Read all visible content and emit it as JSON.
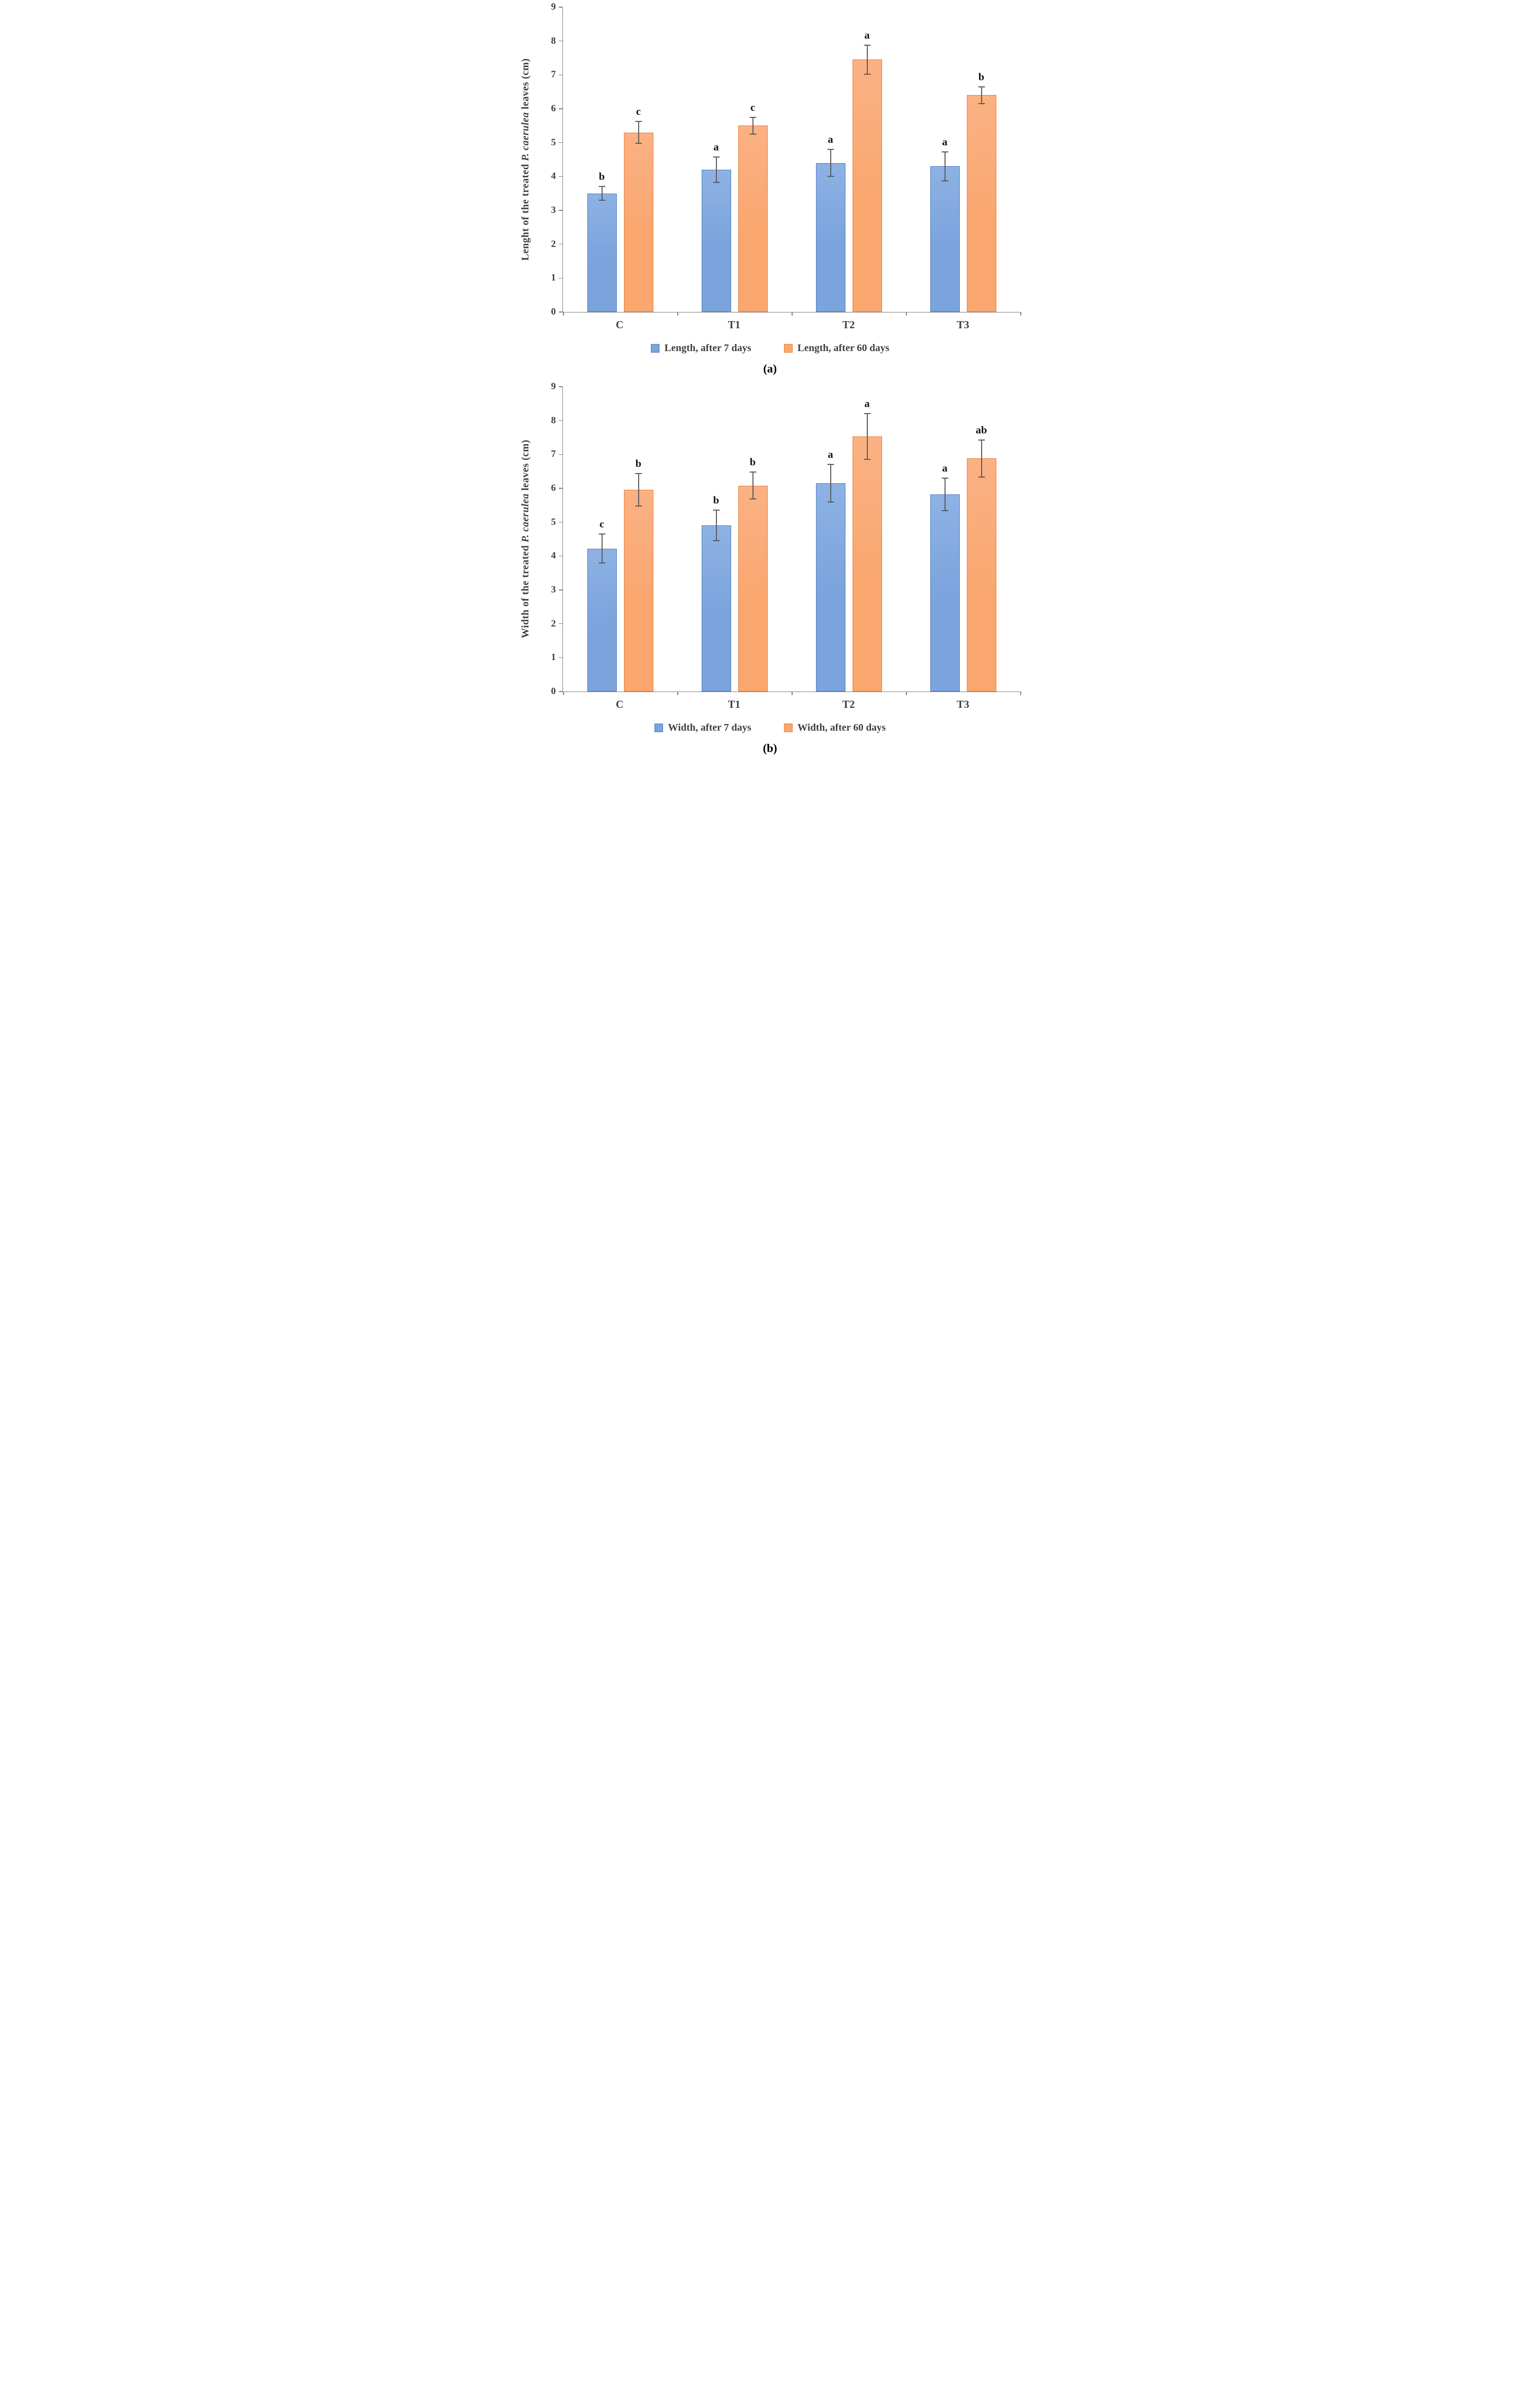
{
  "colors": {
    "series1_fill": "#7ba3dc",
    "series1_border": "#4d7ebf",
    "series2_fill": "#faa76f",
    "series2_border": "#e97d33",
    "axis": "#7f7f7f",
    "error_bar": "#595959",
    "label_text": "#3f3f3f"
  },
  "chart_data": [
    {
      "id": "a",
      "type": "bar",
      "caption": "(a)",
      "title": "",
      "xlabel": "",
      "ylabel": "Lenght of the treated P. caerulea leaves (cm)",
      "ylabel_parts": [
        {
          "text": "Lenght of the treated ",
          "italic": false
        },
        {
          "text": "P. caerulea",
          "italic": true
        },
        {
          "text": " leaves (cm)",
          "italic": false
        }
      ],
      "categories": [
        "C",
        "T1",
        "T2",
        "T3"
      ],
      "series": [
        {
          "name": "Length, after 7 days",
          "values": [
            3.5,
            4.2,
            4.4,
            4.3
          ],
          "errors": [
            0.2,
            0.38,
            0.4,
            0.43
          ],
          "letters": [
            "b",
            "a",
            "a",
            "a"
          ],
          "color": "#7ba3dc"
        },
        {
          "name": "Length, after 60 days",
          "values": [
            5.3,
            5.5,
            7.45,
            6.4
          ],
          "errors": [
            0.32,
            0.25,
            0.43,
            0.25
          ],
          "letters": [
            "c",
            "c",
            "a",
            "b"
          ],
          "color": "#faa76f"
        }
      ],
      "ylim": [
        0,
        9
      ],
      "ytick_step": 1,
      "grid": false,
      "legend_position": "bottom"
    },
    {
      "id": "b",
      "type": "bar",
      "caption": "(b)",
      "title": "",
      "xlabel": "",
      "ylabel": "Width of the treated P. caerulea leaves (cm)",
      "ylabel_parts": [
        {
          "text": "Width of the treated ",
          "italic": false
        },
        {
          "text": "P. caerulea",
          "italic": true
        },
        {
          "text": " leaves (cm)",
          "italic": false
        }
      ],
      "categories": [
        "C",
        "T1",
        "T2",
        "T3"
      ],
      "series": [
        {
          "name": "Width, after 7 days",
          "values": [
            4.22,
            4.9,
            6.15,
            5.82
          ],
          "errors": [
            0.43,
            0.45,
            0.55,
            0.48
          ],
          "letters": [
            "c",
            "b",
            "a",
            "a"
          ],
          "color": "#7ba3dc"
        },
        {
          "name": "Width, after 60 days",
          "values": [
            5.95,
            6.08,
            7.53,
            6.88
          ],
          "errors": [
            0.48,
            0.4,
            0.68,
            0.55
          ],
          "letters": [
            "b",
            "b",
            "a",
            "ab"
          ],
          "color": "#faa76f"
        }
      ],
      "ylim": [
        0,
        9
      ],
      "ytick_step": 1,
      "grid": false,
      "legend_position": "bottom"
    }
  ]
}
